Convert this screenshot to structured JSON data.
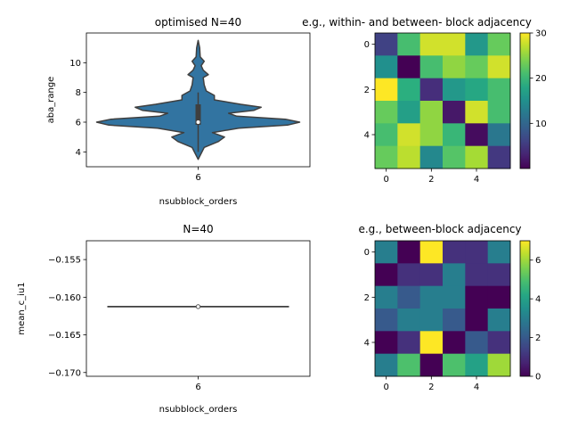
{
  "chart_data": [
    {
      "type": "violin",
      "title": "optimised N=40",
      "xlabel": "nsubblock_orders",
      "ylabel": "aba_range",
      "categories": [
        "6"
      ],
      "ylim": [
        3,
        12
      ],
      "yticks": [
        4,
        6,
        8,
        10
      ],
      "stats": {
        "median": 6,
        "q1": 6,
        "q3": 7.2,
        "whisker_low": 4,
        "whisker_high": 8
      },
      "density": [
        {
          "y": 3.5,
          "w": 0.0
        },
        {
          "y": 3.9,
          "w": 0.03
        },
        {
          "y": 4.3,
          "w": 0.06
        },
        {
          "y": 4.7,
          "w": 0.2
        },
        {
          "y": 5.0,
          "w": 0.26
        },
        {
          "y": 5.3,
          "w": 0.14
        },
        {
          "y": 5.6,
          "w": 0.4
        },
        {
          "y": 5.8,
          "w": 0.88
        },
        {
          "y": 6.0,
          "w": 1.0
        },
        {
          "y": 6.2,
          "w": 0.86
        },
        {
          "y": 6.4,
          "w": 0.38
        },
        {
          "y": 6.6,
          "w": 0.3
        },
        {
          "y": 6.8,
          "w": 0.55
        },
        {
          "y": 7.0,
          "w": 0.62
        },
        {
          "y": 7.2,
          "w": 0.42
        },
        {
          "y": 7.5,
          "w": 0.16
        },
        {
          "y": 7.8,
          "w": 0.16
        },
        {
          "y": 8.1,
          "w": 0.08
        },
        {
          "y": 8.5,
          "w": 0.06
        },
        {
          "y": 9.0,
          "w": 0.05
        },
        {
          "y": 9.2,
          "w": 0.1
        },
        {
          "y": 9.5,
          "w": 0.05
        },
        {
          "y": 9.8,
          "w": 0.03
        },
        {
          "y": 10.1,
          "w": 0.06
        },
        {
          "y": 10.4,
          "w": 0.02
        },
        {
          "y": 11.0,
          "w": 0.015
        },
        {
          "y": 11.5,
          "w": 0.0
        }
      ]
    },
    {
      "type": "heatmap",
      "title": "e.g., within- and between- block adjacency",
      "xticks": [
        0,
        2,
        4
      ],
      "yticks": [
        0,
        2,
        4
      ],
      "colorbar": {
        "min": 0,
        "max": 30,
        "ticks": [
          10,
          20,
          30
        ]
      },
      "cmap": "viridis",
      "matrix": [
        [
          6,
          21,
          28,
          28,
          16,
          23
        ],
        [
          15,
          0,
          21,
          25,
          23,
          28
        ],
        [
          30,
          19,
          4,
          16,
          18,
          21
        ],
        [
          23,
          17,
          25,
          2,
          28,
          21
        ],
        [
          21,
          28,
          25,
          20,
          1,
          12
        ],
        [
          23,
          27,
          14,
          22,
          26,
          5
        ]
      ]
    },
    {
      "type": "violin",
      "title": "N=40",
      "xlabel": "nsubblock_orders",
      "ylabel": "mean_c_iu1",
      "categories": [
        "6"
      ],
      "ylim": [
        -0.1705,
        -0.1525
      ],
      "yticks": [
        -0.155,
        -0.16,
        -0.165,
        -0.17
      ],
      "ytick_labels": [
        "−0.155",
        "−0.160",
        "−0.165",
        "−0.170"
      ],
      "value": -0.16125
    },
    {
      "type": "heatmap",
      "title": "e.g., between-block adjacency",
      "xticks": [
        0,
        2,
        4
      ],
      "yticks": [
        0,
        2,
        4
      ],
      "colorbar": {
        "min": 0,
        "max": 7,
        "ticks": [
          0,
          2,
          4,
          6
        ]
      },
      "cmap": "viridis",
      "matrix": [
        [
          3,
          0,
          7,
          1,
          1,
          3
        ],
        [
          0,
          1,
          1,
          3,
          1,
          1
        ],
        [
          3,
          2,
          3,
          3,
          0,
          0
        ],
        [
          2,
          3,
          3,
          2,
          0,
          3
        ],
        [
          0,
          1,
          7,
          0,
          2,
          1
        ],
        [
          3,
          5,
          0,
          5,
          4,
          6
        ]
      ]
    }
  ]
}
